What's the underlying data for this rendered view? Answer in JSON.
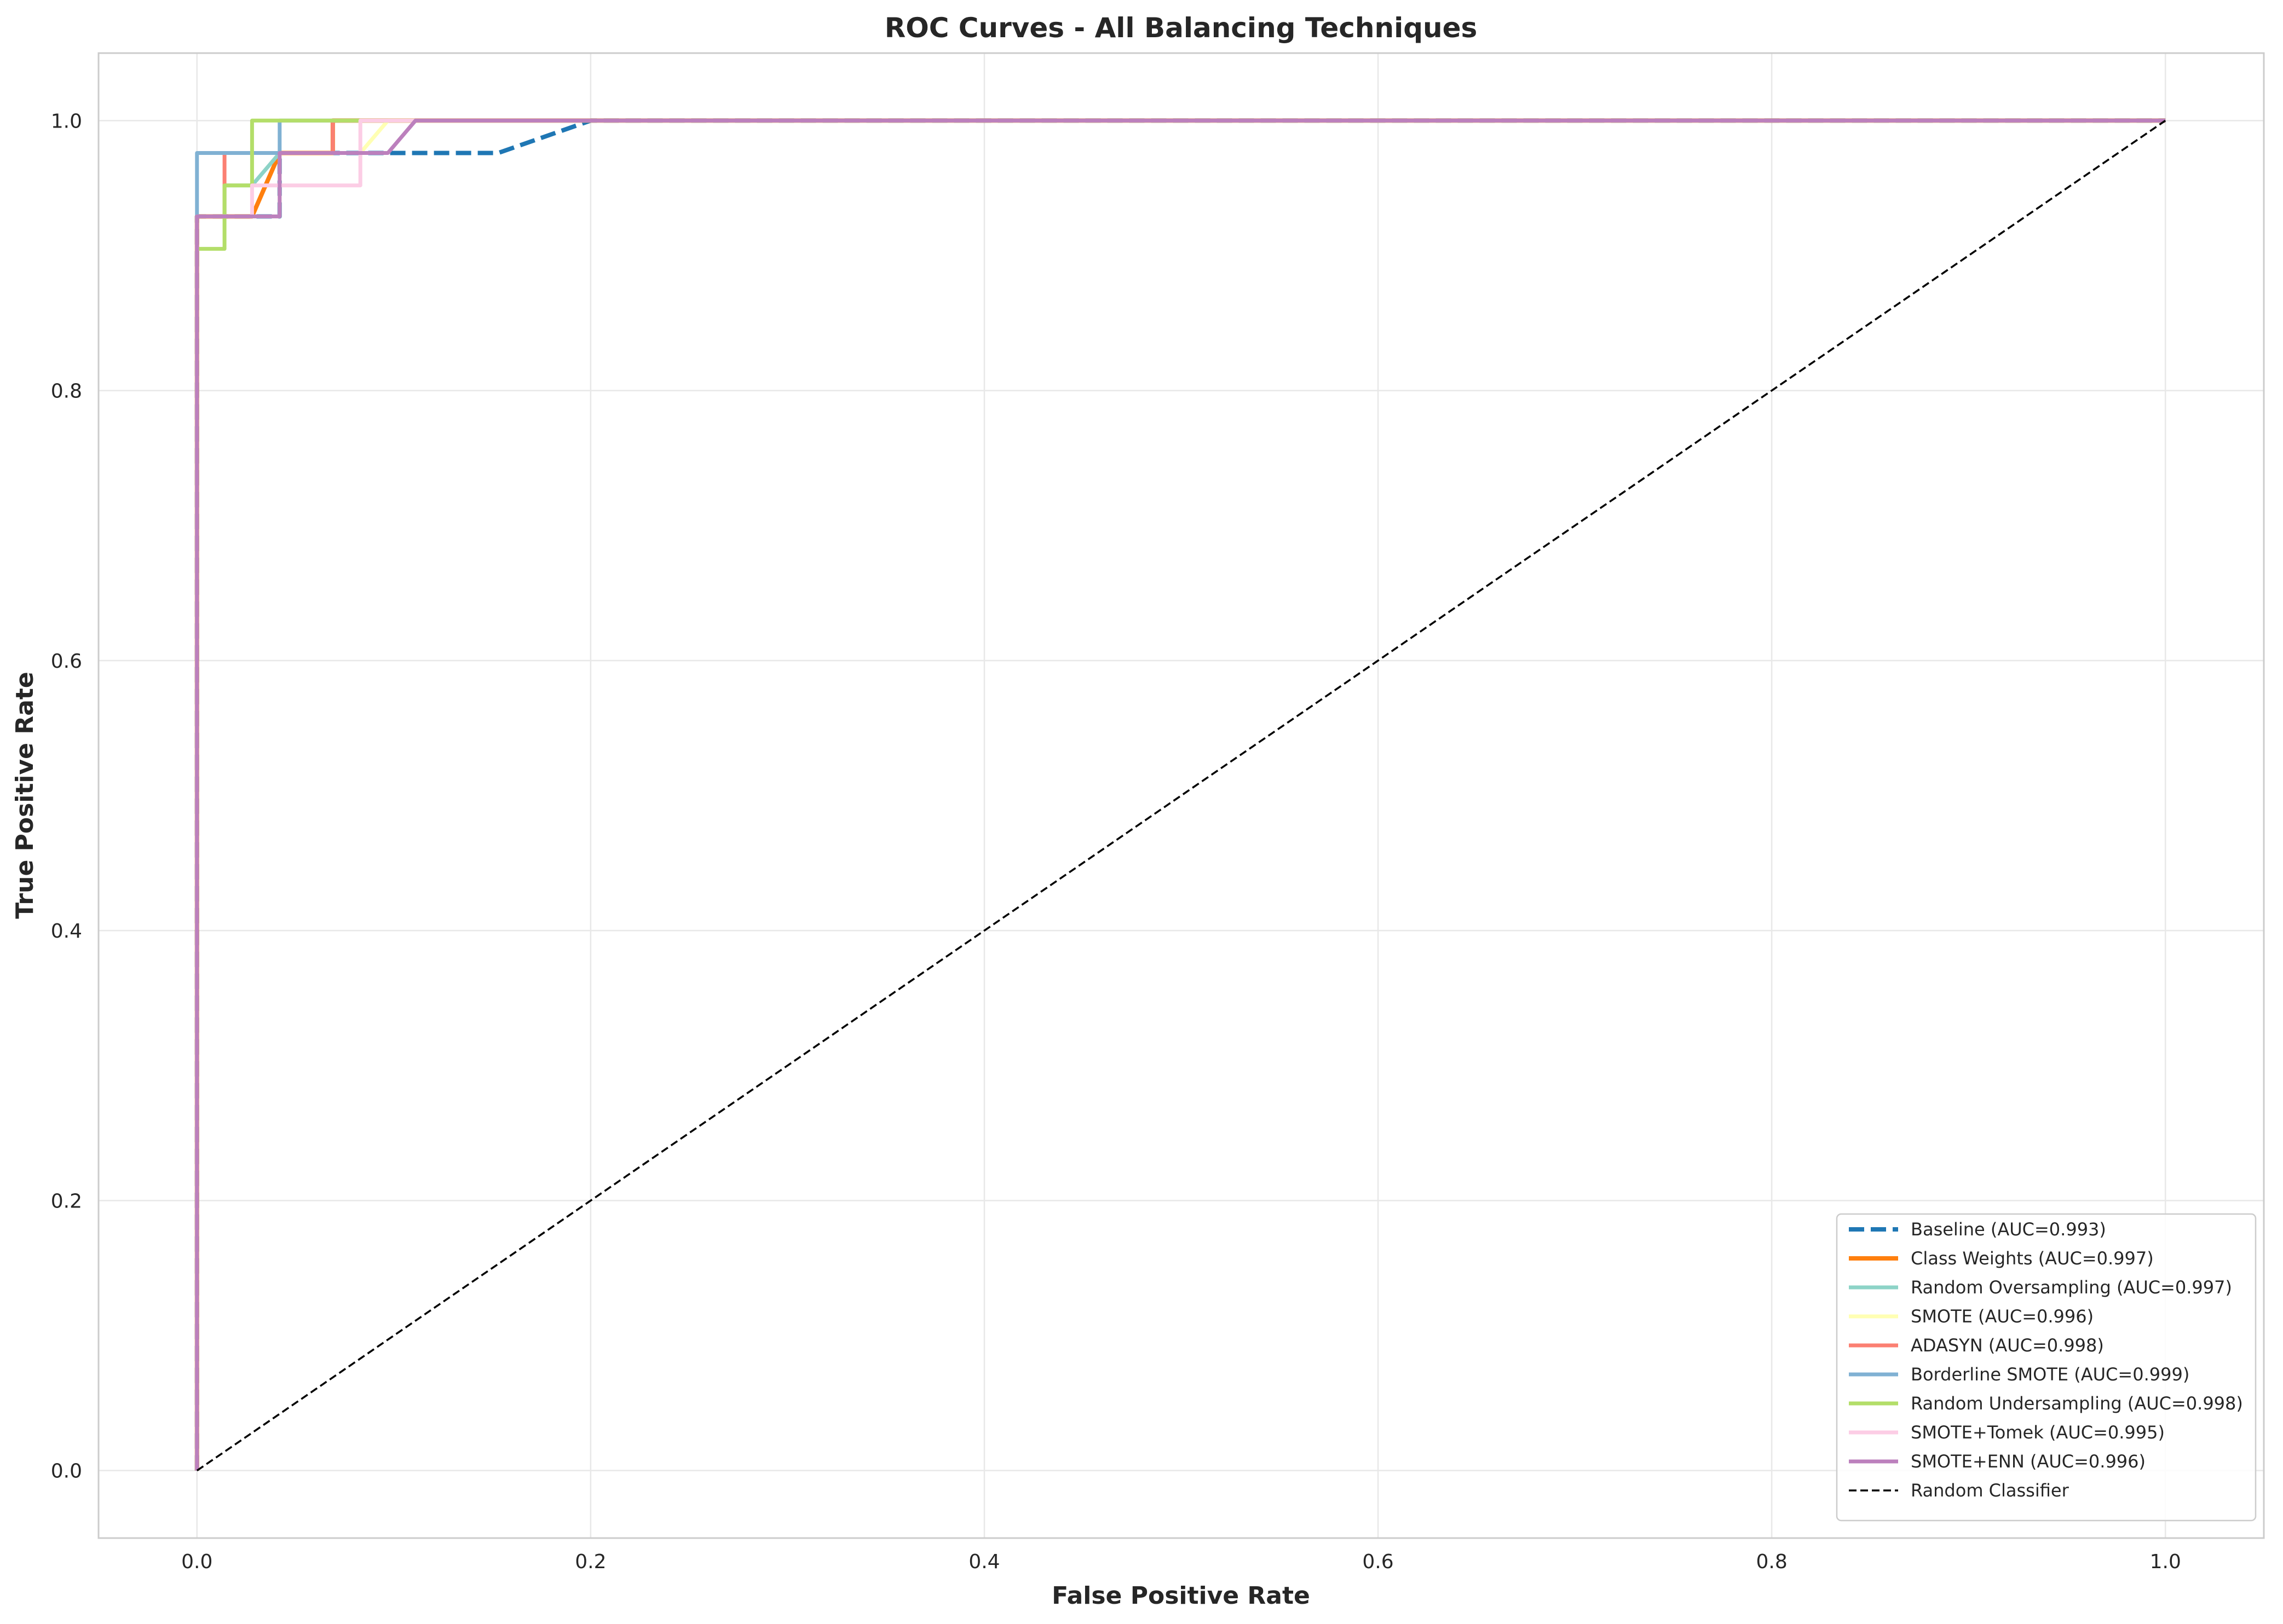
{
  "chart_data": {
    "type": "line",
    "title": "ROC Curves - All Balancing Techniques",
    "xlabel": "False Positive Rate",
    "ylabel": "True Positive Rate",
    "xlim": [
      -0.05,
      1.05
    ],
    "ylim": [
      -0.05,
      1.05
    ],
    "xticks": [
      0.0,
      0.2,
      0.4,
      0.6,
      0.8,
      1.0
    ],
    "yticks": [
      0.0,
      0.2,
      0.4,
      0.6,
      0.8,
      1.0
    ],
    "xtick_labels": [
      "0.0",
      "0.2",
      "0.4",
      "0.6",
      "0.8",
      "1.0"
    ],
    "ytick_labels": [
      "0.0",
      "0.2",
      "0.4",
      "0.6",
      "0.8",
      "1.0"
    ],
    "grid": true,
    "legend_position": "lower-right",
    "series": [
      {
        "name": "Baseline (AUC=0.993)",
        "color": "#1f77b4",
        "style": "dashed",
        "x": [
          0,
          0,
          0.042,
          0.042,
          0.153,
          0.2,
          1.0
        ],
        "y": [
          0,
          0.929,
          0.929,
          0.976,
          0.976,
          1.0,
          1.0
        ]
      },
      {
        "name": "Class Weights (AUC=0.997)",
        "color": "#ff7f0e",
        "style": "solid",
        "x": [
          0,
          0,
          0.028,
          0.042,
          0.069,
          0.069,
          0.111,
          1.0
        ],
        "y": [
          0,
          0.929,
          0.929,
          0.976,
          0.976,
          1.0,
          1.0,
          1.0
        ]
      },
      {
        "name": "Random Oversampling (AUC=0.997)",
        "color": "#8dd3c7",
        "style": "solid",
        "x": [
          0,
          0,
          0.014,
          0.014,
          0.028,
          0.042,
          0.069,
          0.069,
          1.0
        ],
        "y": [
          0,
          0.929,
          0.929,
          0.952,
          0.952,
          0.976,
          0.976,
          1.0,
          1.0
        ]
      },
      {
        "name": "SMOTE (AUC=0.996)",
        "color": "#ffffb3",
        "style": "solid",
        "x": [
          0,
          0,
          0.042,
          0.042,
          0.083,
          0.097,
          0.097,
          1.0
        ],
        "y": [
          0,
          0.929,
          0.929,
          0.976,
          0.976,
          1.0,
          1.0,
          1.0
        ]
      },
      {
        "name": "ADASYN (AUC=0.998)",
        "color": "#fb8072",
        "style": "solid",
        "x": [
          0,
          0,
          0.014,
          0.014,
          0.042,
          0.042,
          0.069,
          0.069,
          1.0
        ],
        "y": [
          0,
          0.929,
          0.929,
          0.976,
          0.976,
          0.976,
          0.976,
          1.0,
          1.0
        ]
      },
      {
        "name": "Borderline SMOTE (AUC=0.999)",
        "color": "#80b1d3",
        "style": "solid",
        "x": [
          0,
          0,
          0.042,
          0.042,
          1.0
        ],
        "y": [
          0,
          0.976,
          0.976,
          1.0,
          1.0
        ]
      },
      {
        "name": "Random Undersampling (AUC=0.998)",
        "color": "#b3de69",
        "style": "solid",
        "x": [
          0,
          0,
          0.014,
          0.014,
          0.028,
          0.028,
          1.0
        ],
        "y": [
          0,
          0.905,
          0.905,
          0.952,
          0.952,
          1.0,
          1.0
        ]
      },
      {
        "name": "SMOTE+Tomek (AUC=0.995)",
        "color": "#fccde5",
        "style": "solid",
        "x": [
          0,
          0,
          0.028,
          0.028,
          0.083,
          0.083,
          1.0
        ],
        "y": [
          0,
          0.929,
          0.929,
          0.952,
          0.952,
          1.0,
          1.0
        ]
      },
      {
        "name": "SMOTE+ENN (AUC=0.996)",
        "color": "#bc80bd",
        "style": "solid",
        "x": [
          0,
          0,
          0.042,
          0.042,
          0.097,
          0.111,
          1.0
        ],
        "y": [
          0,
          0.929,
          0.929,
          0.976,
          0.976,
          1.0,
          1.0
        ]
      },
      {
        "name": "Random Classifier",
        "color": "#000000",
        "style": "dashed-thin",
        "x": [
          0,
          1.0
        ],
        "y": [
          0,
          1.0
        ]
      }
    ]
  }
}
